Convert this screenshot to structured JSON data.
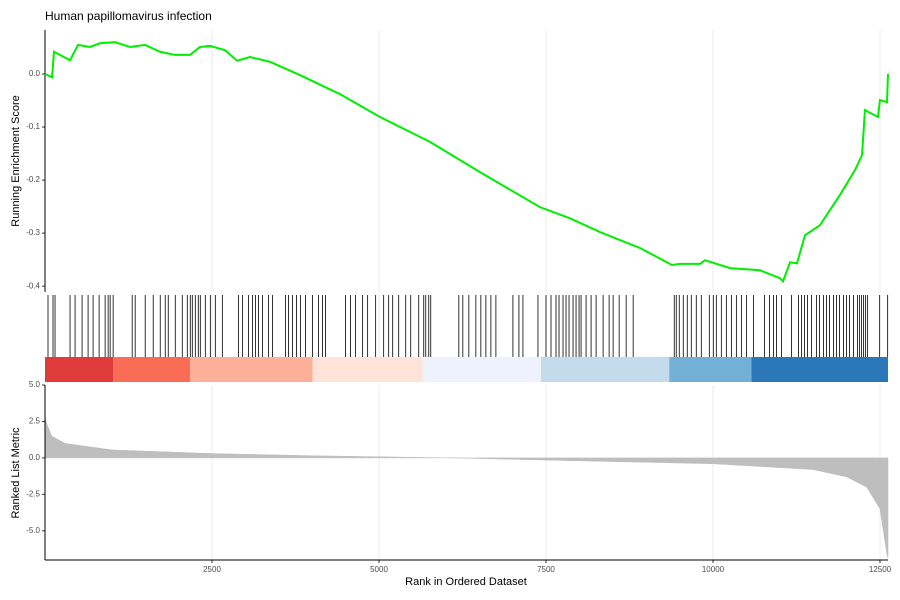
{
  "chart_data": {
    "type": "gsea",
    "title": "Human papillomavirus infection",
    "xlabel": "Rank in Ordered Dataset",
    "ylabel": "Running Enrichment Score",
    "ylabel2": "Ranked List Metric",
    "xlim": [
      0,
      12620
    ],
    "xticks": [
      2500,
      5000,
      7500,
      10000,
      12500
    ],
    "grid": true,
    "es": {
      "color": "#00ee00",
      "ylim": [
        -0.411,
        0.083
      ],
      "yticks": [
        {
          "value": 0,
          "label": "0.0"
        },
        -0.1,
        -0.2,
        -0.3,
        -0.4
      ],
      "x": [
        0,
        105,
        135,
        375,
        494,
        674,
        823,
        1048,
        1272,
        1497,
        1722,
        1946,
        2171,
        2320,
        2470,
        2695,
        2874,
        3069,
        3368,
        3817,
        4416,
        5015,
        5763,
        6512,
        7410,
        7859,
        8308,
        8907,
        9386,
        9506,
        9805,
        9880,
        10254,
        10704,
        11003,
        11048,
        11153,
        11257,
        11377,
        11602,
        11901,
        12126,
        12231,
        12275,
        12470,
        12500,
        12605,
        12620
      ],
      "values": [
        0,
        -0.006,
        0.042,
        0.026,
        0.055,
        0.051,
        0.058,
        0.06,
        0.051,
        0.055,
        0.042,
        0.036,
        0.036,
        0.051,
        0.053,
        0.045,
        0.025,
        0.032,
        0.023,
        -0.002,
        -0.038,
        -0.081,
        -0.128,
        -0.185,
        -0.251,
        -0.272,
        -0.298,
        -0.328,
        -0.36,
        -0.358,
        -0.358,
        -0.351,
        -0.366,
        -0.37,
        -0.385,
        -0.391,
        -0.355,
        -0.357,
        -0.304,
        -0.285,
        -0.228,
        -0.181,
        -0.153,
        -0.068,
        -0.081,
        -0.049,
        -0.053,
        0
      ]
    },
    "hits": [
      45,
      120,
      150,
      375,
      450,
      555,
      645,
      720,
      810,
      900,
      945,
      975,
      1020,
      1305,
      1350,
      1500,
      1620,
      1725,
      1800,
      1845,
      1950,
      2055,
      2130,
      2175,
      2205,
      2250,
      2295,
      2325,
      2400,
      2475,
      2550,
      2655,
      2895,
      2955,
      3045,
      3105,
      3150,
      3195,
      3255,
      3345,
      3405,
      3600,
      3645,
      3705,
      3765,
      3825,
      3900,
      4005,
      4095,
      4155,
      4200,
      4500,
      4575,
      4650,
      4755,
      4830,
      4950,
      5070,
      5145,
      5205,
      5295,
      5400,
      5475,
      5595,
      5670,
      5700,
      5745,
      5775,
      6195,
      6255,
      6345,
      6450,
      6525,
      6600,
      6675,
      6750,
      7005,
      7095,
      7155,
      7380,
      7500,
      7575,
      7650,
      7695,
      7755,
      7800,
      7845,
      7905,
      7950,
      7995,
      8025,
      8100,
      8175,
      8250,
      8355,
      8445,
      8505,
      8595,
      8700,
      8805,
      9420,
      9450,
      9495,
      9555,
      9615,
      9675,
      9750,
      9825,
      9945,
      10005,
      10050,
      10125,
      10200,
      10275,
      10350,
      10425,
      10500,
      10605,
      10770,
      10845,
      10905,
      10950,
      11025,
      11175,
      11280,
      11325,
      11370,
      11415,
      11475,
      11550,
      11595,
      11655,
      11700,
      11745,
      11805,
      11850,
      11895,
      11955,
      12000,
      12045,
      12105,
      12165,
      12195,
      12225,
      12255,
      12285,
      12315,
      12495,
      12615
    ],
    "band": {
      "breaks": [
        0,
        1020,
        2175,
        4005,
        5655,
        7425,
        9345,
        10575,
        12620
      ],
      "colors": [
        "#e03b3b",
        "#f96c55",
        "#fcb09a",
        "#fee3d8",
        "#edf2fc",
        "#c3dbea",
        "#72b0d6",
        "#2c77b8"
      ]
    },
    "metric": {
      "color": "#bebebe",
      "ylim": [
        -7,
        5
      ],
      "yticks": [
        {
          "value": 5,
          "label": "5.0"
        },
        2.5,
        {
          "value": 0,
          "label": "0.0"
        },
        -2.5,
        {
          "value": -5,
          "label": "-5.0"
        }
      ],
      "x": [
        0,
        30,
        100,
        300,
        1000,
        2500,
        4000,
        6100,
        8000,
        10000,
        11500,
        12000,
        12300,
        12500,
        12600,
        12620
      ],
      "values": [
        2.8,
        2.3,
        1.5,
        1.0,
        0.55,
        0.3,
        0.15,
        0,
        -0.2,
        -0.4,
        -0.8,
        -1.3,
        -2.0,
        -3.5,
        -6.5,
        -6.9
      ]
    }
  }
}
